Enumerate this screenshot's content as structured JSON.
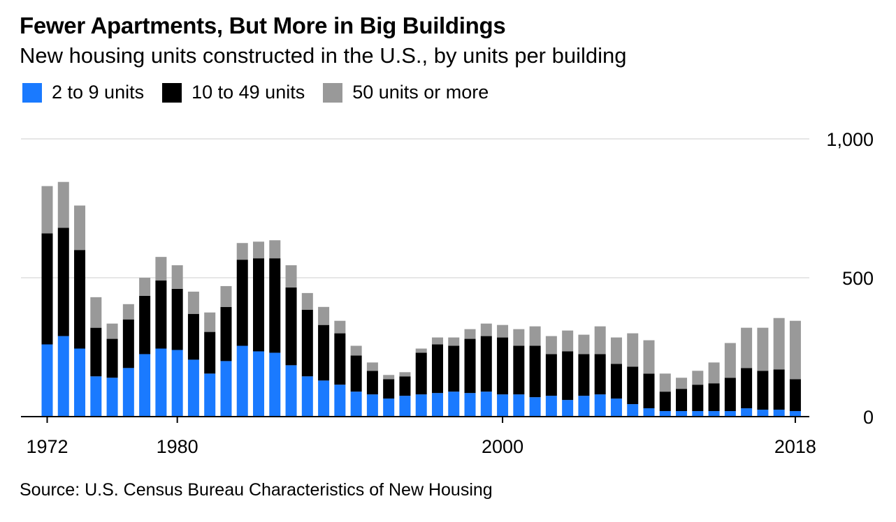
{
  "title": "Fewer Apartments, But More in Big Buildings",
  "subtitle": "New housing units constructed in the U.S., by units per building",
  "source": "Source: U.S. Census Bureau Characteristics of New Housing",
  "colors": {
    "small": "#1a7aff",
    "mid": "#000000",
    "large": "#999999",
    "grid": "#e6e6e6",
    "axis": "#000000"
  },
  "chart_data": {
    "type": "bar",
    "stacked": true,
    "title": "Fewer Apartments, But More in Big Buildings",
    "subtitle": "New housing units constructed in the U.S., by units per building",
    "xlabel": "",
    "ylabel": "",
    "ylim": [
      0,
      1000
    ],
    "yticks": [
      0,
      500,
      1000
    ],
    "ytick_labels": [
      "0",
      "500",
      "1,000"
    ],
    "xticks": [
      1972,
      1980,
      2000,
      2018
    ],
    "xtick_labels": [
      "1972",
      "1980",
      "2000",
      "2018"
    ],
    "grid": true,
    "legend_position": "top-left",
    "categories": [
      1972,
      1973,
      1974,
      1975,
      1976,
      1977,
      1978,
      1979,
      1980,
      1981,
      1982,
      1983,
      1984,
      1985,
      1986,
      1987,
      1988,
      1989,
      1990,
      1991,
      1992,
      1993,
      1994,
      1995,
      1996,
      1997,
      1998,
      1999,
      2000,
      2001,
      2002,
      2003,
      2004,
      2005,
      2006,
      2007,
      2008,
      2009,
      2010,
      2011,
      2012,
      2013,
      2014,
      2015,
      2016,
      2017,
      2018
    ],
    "series": [
      {
        "name": "2 to 9 units",
        "color": "#1a7aff",
        "values": [
          260,
          290,
          245,
          145,
          140,
          175,
          225,
          245,
          240,
          205,
          155,
          200,
          255,
          235,
          230,
          185,
          145,
          130,
          115,
          90,
          80,
          65,
          75,
          80,
          85,
          90,
          85,
          90,
          80,
          80,
          70,
          75,
          60,
          75,
          80,
          65,
          45,
          30,
          20,
          20,
          20,
          20,
          20,
          30,
          25,
          25,
          20
        ]
      },
      {
        "name": "10 to 49 units",
        "color": "#000000",
        "values": [
          400,
          390,
          355,
          175,
          140,
          175,
          210,
          245,
          220,
          165,
          150,
          195,
          310,
          335,
          340,
          280,
          240,
          200,
          185,
          130,
          85,
          70,
          70,
          150,
          175,
          165,
          195,
          200,
          205,
          175,
          185,
          150,
          175,
          150,
          145,
          125,
          135,
          125,
          70,
          80,
          95,
          100,
          120,
          145,
          140,
          145,
          115
        ]
      },
      {
        "name": "50 units or more",
        "color": "#999999",
        "values": [
          170,
          165,
          160,
          110,
          55,
          55,
          65,
          85,
          85,
          80,
          70,
          75,
          60,
          60,
          65,
          80,
          60,
          65,
          45,
          35,
          30,
          15,
          15,
          15,
          25,
          30,
          35,
          45,
          45,
          60,
          70,
          65,
          75,
          70,
          100,
          95,
          120,
          120,
          65,
          40,
          50,
          75,
          125,
          145,
          155,
          185,
          210
        ]
      }
    ]
  }
}
